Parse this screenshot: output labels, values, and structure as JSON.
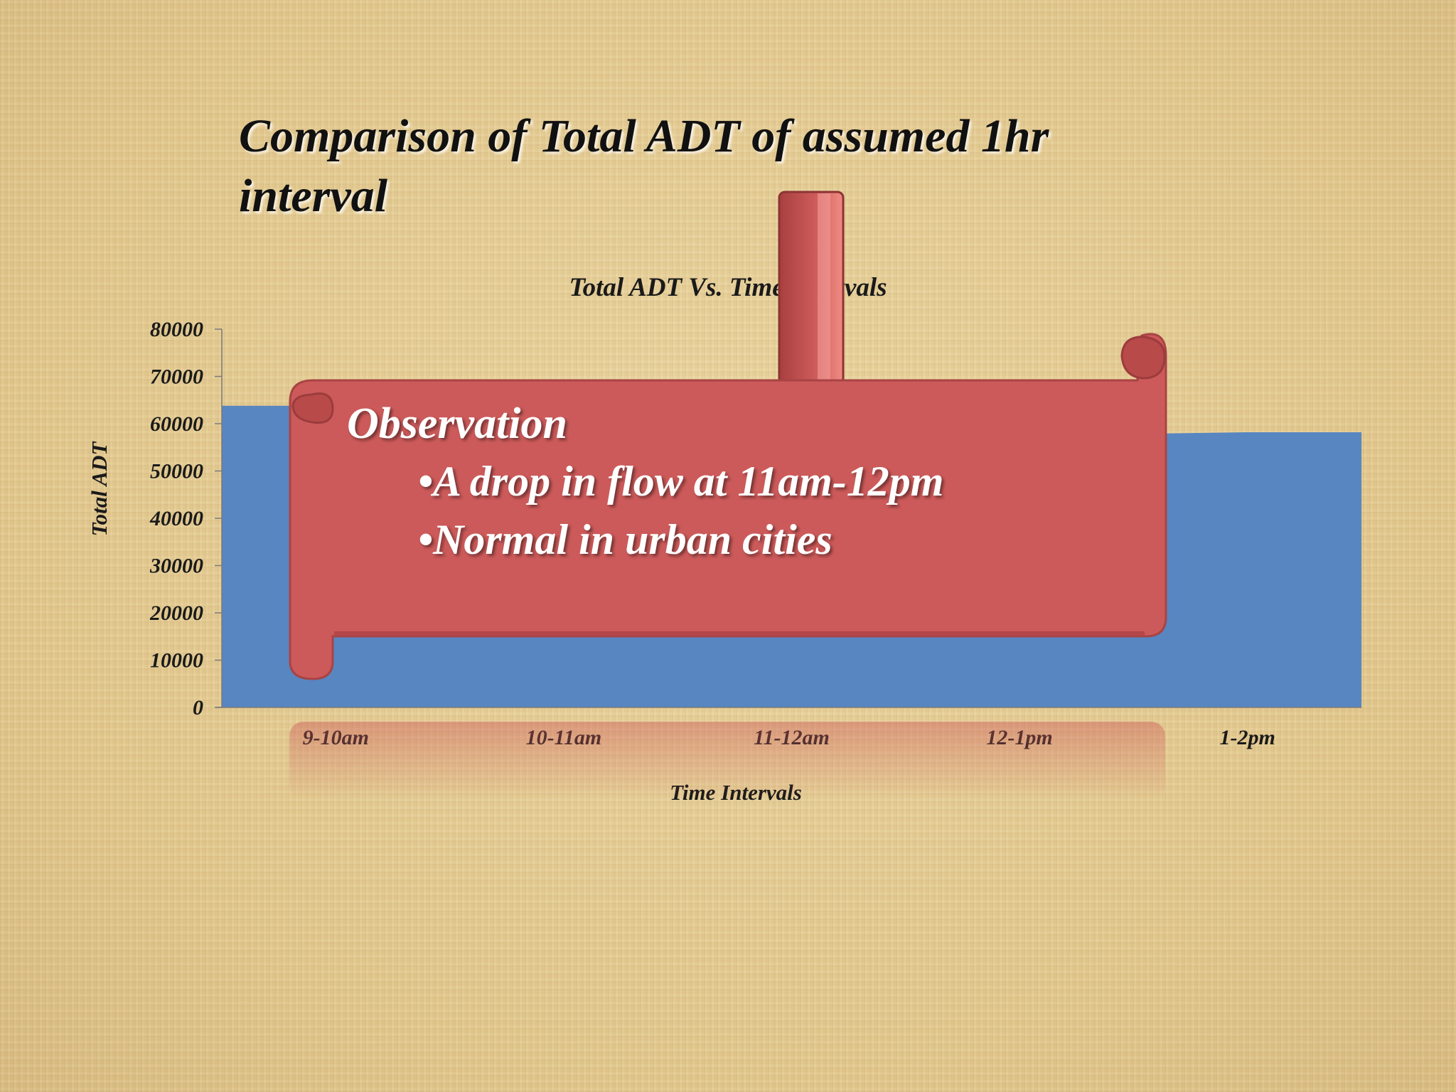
{
  "slide": {
    "title": "Comparison of Total ADT of assumed 1hr interval"
  },
  "callout": {
    "heading": "Observation",
    "bullets": [
      "•A drop in flow at 11am-12pm",
      "•Normal in urban cities"
    ]
  },
  "colors": {
    "series": "#5786c1",
    "callout": "#cd5a5a",
    "callout_dark": "#b24848"
  },
  "chart_data": {
    "type": "area",
    "title": "Total ADT Vs. Time Intervals",
    "xlabel": "Time Intervals",
    "ylabel": "Total ADT",
    "categories": [
      "9-10am",
      "10-11am",
      "11-12am",
      "12-1pm",
      "1-2pm"
    ],
    "values": [
      63800,
      60000,
      57000,
      57500,
      58200
    ],
    "ylim": [
      0,
      80000
    ],
    "yticks": [
      0,
      10000,
      20000,
      30000,
      40000,
      50000,
      60000,
      70000,
      80000
    ],
    "grid": false,
    "legend": "none"
  }
}
